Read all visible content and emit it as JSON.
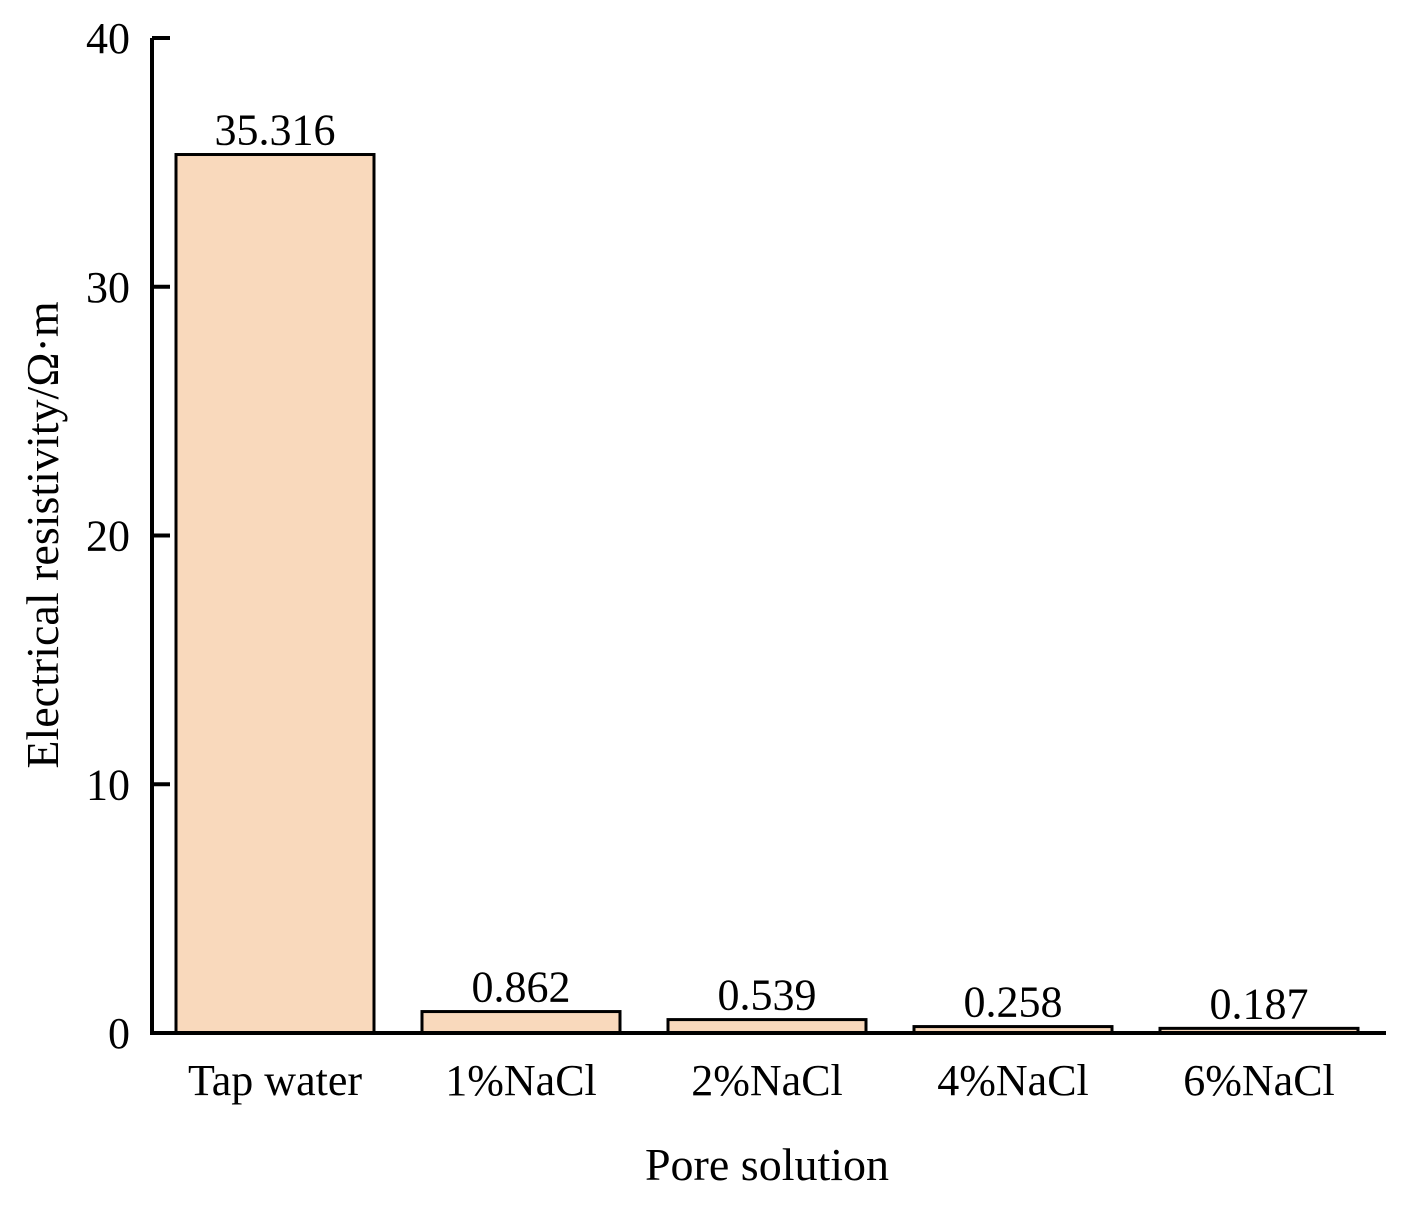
{
  "chart_data": {
    "type": "bar",
    "title": "",
    "xlabel": "Pore solution",
    "ylabel": "Electrical resistivity/Ω·m",
    "categories": [
      "Tap water",
      "1%NaCl",
      "2%NaCl",
      "4%NaCl",
      "6%NaCl"
    ],
    "values": [
      35.316,
      0.862,
      0.539,
      0.258,
      0.187
    ],
    "data_labels": [
      "35.316",
      "0.862",
      "0.539",
      "0.258",
      "0.187"
    ],
    "ylim": [
      0,
      40
    ],
    "yticks": [
      0,
      10,
      20,
      30,
      40
    ],
    "ytick_labels": [
      "0",
      "10",
      "20",
      "30",
      "40"
    ],
    "grid": false,
    "legend": "none",
    "colors": {
      "bar_fill": "#F9D9BC",
      "bar_stroke": "#000000",
      "axis": "#000000"
    }
  }
}
